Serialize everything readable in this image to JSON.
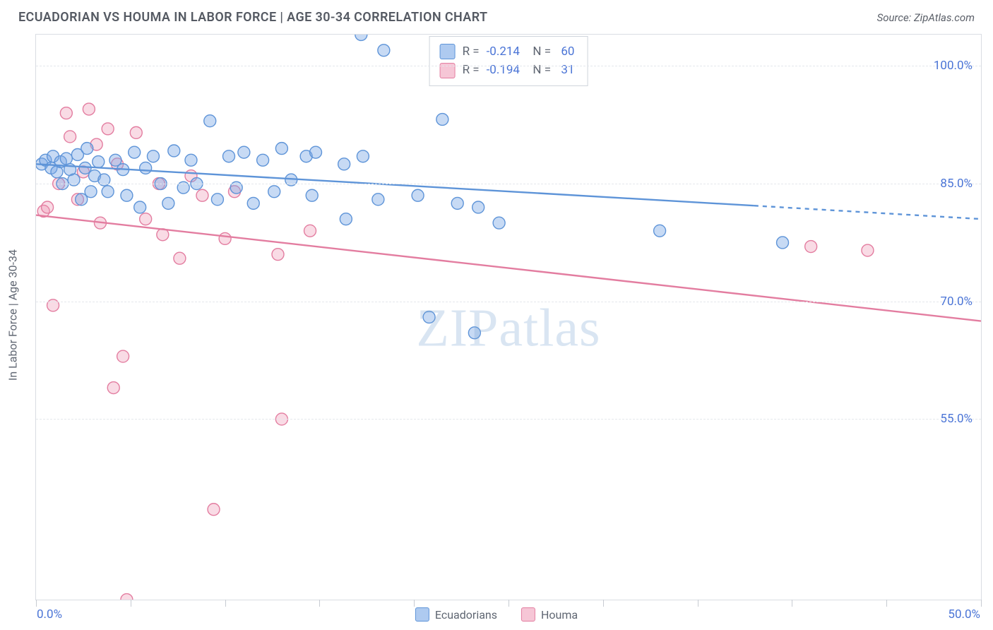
{
  "title": "ECUADORIAN VS HOUMA IN LABOR FORCE | AGE 30-34 CORRELATION CHART",
  "source_label": "Source: ZipAtlas.com",
  "watermark": "ZIPatlas",
  "y_axis_label": "In Labor Force | Age 30-34",
  "chart": {
    "type": "scatter",
    "background_color": "#ffffff",
    "border_color": "#d9dde3",
    "grid_color": "#e4e7ec",
    "grid_dash": "4 4",
    "axis_label_color": "#5f6672",
    "tick_label_color": "#4a74d6",
    "xlim": [
      0,
      50
    ],
    "ylim_visible": [
      32,
      104
    ],
    "x_ticks": [
      0,
      5,
      10,
      15,
      20,
      25,
      30,
      35,
      40,
      45,
      50
    ],
    "y_ticks": [
      55,
      70,
      85,
      100
    ],
    "y_tick_labels": [
      "55.0%",
      "70.0%",
      "85.0%",
      "100.0%"
    ],
    "x_range_labels": {
      "left": "0.0%",
      "right": "50.0%"
    },
    "marker_radius": 8.5,
    "marker_stroke_width": 1.4,
    "line_width": 2.4,
    "series": [
      {
        "key": "ecuadorians",
        "label": "Ecuadorians",
        "fill": "rgba(122,168,228,0.42)",
        "stroke": "#5e94d8",
        "swatch_fill": "#aecaf0",
        "swatch_border": "#5e94d8",
        "R": "-0.214",
        "N": "60",
        "regression": {
          "x1": 0,
          "y1": 87.5,
          "x2": 38,
          "y2": 82.2,
          "extend_to_x": 50,
          "extend_y": 80.5
        },
        "points": [
          [
            0.3,
            87.5
          ],
          [
            0.5,
            88.0
          ],
          [
            0.8,
            87.0
          ],
          [
            0.9,
            88.5
          ],
          [
            1.1,
            86.5
          ],
          [
            1.3,
            87.8
          ],
          [
            1.4,
            85.0
          ],
          [
            1.6,
            88.2
          ],
          [
            1.8,
            86.8
          ],
          [
            2.0,
            85.5
          ],
          [
            2.2,
            88.7
          ],
          [
            2.4,
            83.0
          ],
          [
            2.6,
            87.0
          ],
          [
            2.7,
            89.5
          ],
          [
            2.9,
            84.0
          ],
          [
            3.1,
            86.0
          ],
          [
            3.3,
            87.8
          ],
          [
            3.6,
            85.5
          ],
          [
            3.8,
            84.0
          ],
          [
            4.2,
            88.0
          ],
          [
            4.6,
            86.8
          ],
          [
            4.8,
            83.5
          ],
          [
            5.2,
            89.0
          ],
          [
            5.5,
            82.0
          ],
          [
            5.8,
            87.0
          ],
          [
            6.2,
            88.5
          ],
          [
            6.6,
            85.0
          ],
          [
            7.0,
            82.5
          ],
          [
            7.3,
            89.2
          ],
          [
            7.8,
            84.5
          ],
          [
            8.2,
            88.0
          ],
          [
            8.5,
            85.0
          ],
          [
            9.2,
            93.0
          ],
          [
            9.6,
            83.0
          ],
          [
            10.2,
            88.5
          ],
          [
            10.6,
            84.5
          ],
          [
            11.0,
            89.0
          ],
          [
            11.5,
            82.5
          ],
          [
            12.0,
            88.0
          ],
          [
            12.6,
            84.0
          ],
          [
            13.0,
            89.5
          ],
          [
            13.5,
            85.5
          ],
          [
            14.3,
            88.5
          ],
          [
            14.6,
            83.5
          ],
          [
            14.8,
            89.0
          ],
          [
            16.3,
            87.5
          ],
          [
            16.4,
            80.5
          ],
          [
            17.2,
            104.0
          ],
          [
            17.3,
            88.5
          ],
          [
            18.1,
            83.0
          ],
          [
            18.4,
            102.0
          ],
          [
            20.2,
            83.5
          ],
          [
            20.8,
            68.0
          ],
          [
            21.5,
            93.2
          ],
          [
            22.3,
            82.5
          ],
          [
            23.2,
            66.0
          ],
          [
            23.4,
            82.0
          ],
          [
            24.5,
            80.0
          ],
          [
            33.0,
            79.0
          ],
          [
            39.5,
            77.5
          ]
        ]
      },
      {
        "key": "houma",
        "label": "Houma",
        "fill": "rgba(236,150,178,0.34)",
        "stroke": "#e37da0",
        "swatch_fill": "#f6c6d6",
        "swatch_border": "#e37da0",
        "R": "-0.194",
        "N": "31",
        "regression": {
          "x1": 0,
          "y1": 81.0,
          "x2": 50,
          "y2": 67.5,
          "extend_to_x": 50,
          "extend_y": 67.5
        },
        "points": [
          [
            0.4,
            81.5
          ],
          [
            0.6,
            82.0
          ],
          [
            0.9,
            69.5
          ],
          [
            1.2,
            85.0
          ],
          [
            1.6,
            94.0
          ],
          [
            1.8,
            91.0
          ],
          [
            2.2,
            83.0
          ],
          [
            2.5,
            86.5
          ],
          [
            2.8,
            94.5
          ],
          [
            3.2,
            90.0
          ],
          [
            3.4,
            80.0
          ],
          [
            3.8,
            92.0
          ],
          [
            4.1,
            59.0
          ],
          [
            4.3,
            87.5
          ],
          [
            4.6,
            63.0
          ],
          [
            4.8,
            32.0
          ],
          [
            5.3,
            91.5
          ],
          [
            5.8,
            80.5
          ],
          [
            6.5,
            85.0
          ],
          [
            6.7,
            78.5
          ],
          [
            7.6,
            75.5
          ],
          [
            8.2,
            86.0
          ],
          [
            8.8,
            83.5
          ],
          [
            9.4,
            43.5
          ],
          [
            10.0,
            78.0
          ],
          [
            10.5,
            84.0
          ],
          [
            12.8,
            76.0
          ],
          [
            13.0,
            55.0
          ],
          [
            14.5,
            79.0
          ],
          [
            41.0,
            77.0
          ],
          [
            44.0,
            76.5
          ]
        ]
      }
    ],
    "legend_bottom": [
      "Ecuadorians",
      "Houma"
    ],
    "font_size_title": 18,
    "font_size_labels": 16,
    "font_size_ticks": 17
  }
}
